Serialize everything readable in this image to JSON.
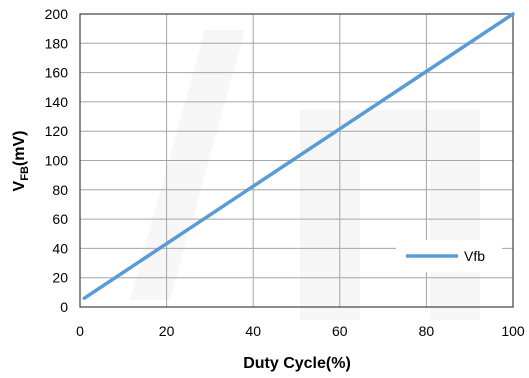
{
  "chart_data": {
    "type": "line",
    "xlabel": "Duty Cycle(%)",
    "ylabel_main": "V",
    "ylabel_sub": "FB",
    "ylabel_unit": "(mV)",
    "xlim": [
      0,
      100
    ],
    "ylim": [
      0,
      200
    ],
    "xticks": [
      "0",
      "20",
      "40",
      "60",
      "80",
      "100"
    ],
    "yticks": [
      "0",
      "20",
      "40",
      "60",
      "80",
      "100",
      "120",
      "140",
      "160",
      "180",
      "200"
    ],
    "grid": true,
    "legend_position": "bottom-right",
    "series": [
      {
        "name": "Vfb",
        "color": "#5b9bd5",
        "x": [
          1,
          100
        ],
        "y": [
          6,
          200
        ]
      }
    ]
  }
}
